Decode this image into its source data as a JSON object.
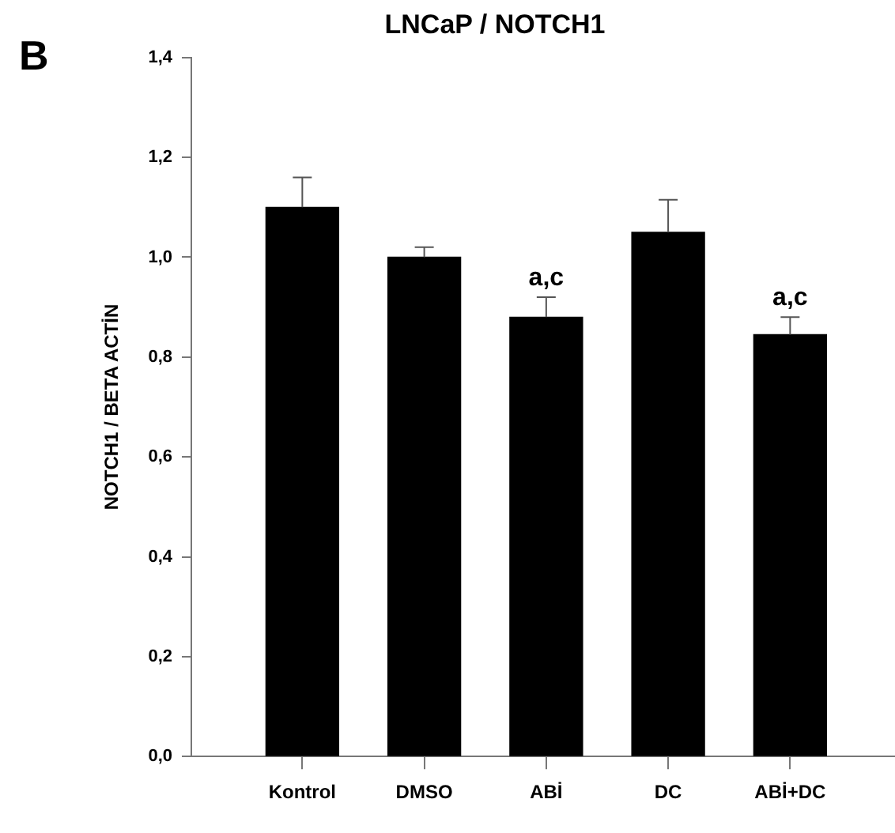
{
  "chart_data": {
    "type": "bar",
    "title": "LNCaP / NOTCH1",
    "ylabel": "NOTCH1 / BETA ACTİN",
    "categories": [
      "Kontrol",
      "DMSO",
      "ABİ",
      "DC",
      "ABİ+DC"
    ],
    "values": [
      1.1,
      1.0,
      0.88,
      1.05,
      0.845
    ],
    "errors": [
      [
        1.1,
        1.16
      ],
      [
        1.0,
        1.02
      ],
      [
        0.88,
        0.92
      ],
      [
        1.05,
        1.115
      ],
      [
        0.845,
        0.88
      ]
    ],
    "color": "#000000",
    "ylim": [
      0,
      1.4
    ],
    "yticks": [
      {
        "value": 0,
        "label": "0,0"
      },
      {
        "value": 0.2,
        "label": "0,2"
      },
      {
        "value": 0.4,
        "label": "0,4"
      },
      {
        "value": 0.6,
        "label": "0,6"
      },
      {
        "value": 0.8,
        "label": "0,8"
      },
      {
        "value": 1,
        "label": "1,0"
      },
      {
        "value": 1.2,
        "label": "1,2"
      },
      {
        "value": 1.4,
        "label": "1,4"
      }
    ],
    "grid": false,
    "legend": false,
    "value_labels": [
      null,
      null,
      "a,c",
      null,
      "a,c"
    ],
    "annotations": [
      "B"
    ]
  }
}
